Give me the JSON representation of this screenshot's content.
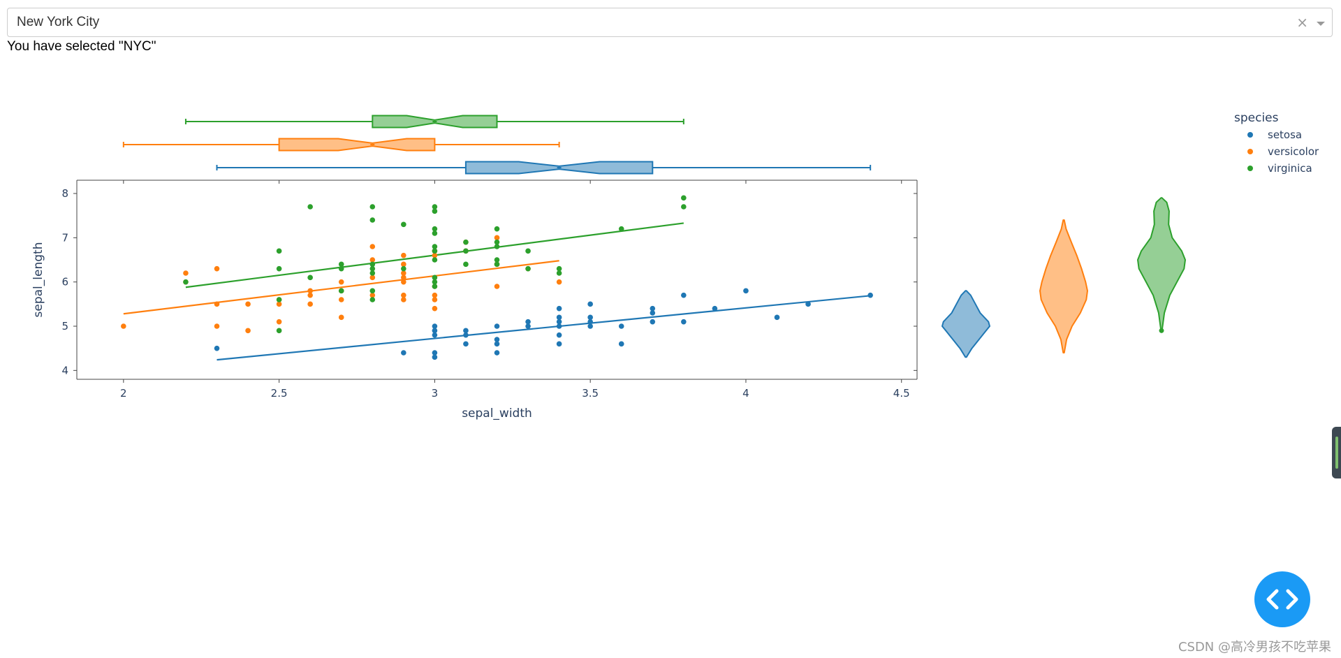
{
  "dropdown": {
    "value": "New York City",
    "clear_symbol": "×"
  },
  "selection_text": "You have selected \"NYC\"",
  "watermark": "CSDN @高冷男孩不吃苹果",
  "fab": {
    "icon": "code-brackets-icon"
  },
  "colors": {
    "setosa": "#1f77b4",
    "versicolor": "#ff7f0e",
    "virginica": "#2ca02c",
    "axis": "#444444",
    "accent": "#1a9af5"
  },
  "chart_data": [
    {
      "type": "scatter",
      "xlabel": "sepal_width",
      "ylabel": "sepal_length",
      "xlim": [
        1.85,
        4.55
      ],
      "ylim": [
        3.8,
        8.3
      ],
      "xticks": [
        "2",
        "2.5",
        "3",
        "3.5",
        "4",
        "4.5"
      ],
      "yticks": [
        "4",
        "5",
        "6",
        "7",
        "8"
      ],
      "legend": {
        "title": "species",
        "placement": "top-right"
      },
      "series": [
        {
          "name": "setosa",
          "color": "#1f77b4",
          "points": [
            [
              2.3,
              4.5
            ],
            [
              2.9,
              4.4
            ],
            [
              3.0,
              4.3
            ],
            [
              3.0,
              4.4
            ],
            [
              3.0,
              4.8
            ],
            [
              3.0,
              4.9
            ],
            [
              3.0,
              5.0
            ],
            [
              3.1,
              4.6
            ],
            [
              3.1,
              4.8
            ],
            [
              3.1,
              4.9
            ],
            [
              3.2,
              4.4
            ],
            [
              3.2,
              4.6
            ],
            [
              3.2,
              4.7
            ],
            [
              3.2,
              5.0
            ],
            [
              3.3,
              5.0
            ],
            [
              3.3,
              5.1
            ],
            [
              3.4,
              4.6
            ],
            [
              3.4,
              4.8
            ],
            [
              3.4,
              5.0
            ],
            [
              3.4,
              5.1
            ],
            [
              3.4,
              5.2
            ],
            [
              3.4,
              5.4
            ],
            [
              3.5,
              5.0
            ],
            [
              3.5,
              5.1
            ],
            [
              3.5,
              5.2
            ],
            [
              3.5,
              5.5
            ],
            [
              3.6,
              4.6
            ],
            [
              3.6,
              5.0
            ],
            [
              3.7,
              5.1
            ],
            [
              3.7,
              5.3
            ],
            [
              3.7,
              5.4
            ],
            [
              3.8,
              5.1
            ],
            [
              3.8,
              5.7
            ],
            [
              3.9,
              5.4
            ],
            [
              4.0,
              5.8
            ],
            [
              4.1,
              5.2
            ],
            [
              4.2,
              5.5
            ],
            [
              4.4,
              5.7
            ]
          ],
          "trendline": [
            [
              2.3,
              4.24
            ],
            [
              4.4,
              5.69
            ]
          ],
          "box": {
            "min": 2.3,
            "q1": 3.1,
            "median": 3.4,
            "q3": 3.7,
            "max": 4.4,
            "notch": [
              3.27,
              3.53
            ]
          },
          "violin": [
            [
              4.3,
              0.02
            ],
            [
              4.5,
              0.25
            ],
            [
              4.7,
              0.55
            ],
            [
              4.9,
              0.85
            ],
            [
              5.0,
              1.0
            ],
            [
              5.1,
              0.95
            ],
            [
              5.3,
              0.6
            ],
            [
              5.5,
              0.4
            ],
            [
              5.7,
              0.2
            ],
            [
              5.8,
              0.02
            ]
          ]
        },
        {
          "name": "versicolor",
          "color": "#ff7f0e",
          "points": [
            [
              2.0,
              5.0
            ],
            [
              2.2,
              6.0
            ],
            [
              2.2,
              6.2
            ],
            [
              2.3,
              5.0
            ],
            [
              2.3,
              5.5
            ],
            [
              2.3,
              6.3
            ],
            [
              2.4,
              4.9
            ],
            [
              2.4,
              5.5
            ],
            [
              2.5,
              5.1
            ],
            [
              2.5,
              5.5
            ],
            [
              2.5,
              5.6
            ],
            [
              2.6,
              5.5
            ],
            [
              2.6,
              5.7
            ],
            [
              2.6,
              5.8
            ],
            [
              2.7,
              5.2
            ],
            [
              2.7,
              5.6
            ],
            [
              2.7,
              5.8
            ],
            [
              2.7,
              6.0
            ],
            [
              2.8,
              5.7
            ],
            [
              2.8,
              6.1
            ],
            [
              2.8,
              6.5
            ],
            [
              2.8,
              6.8
            ],
            [
              2.9,
              5.6
            ],
            [
              2.9,
              5.7
            ],
            [
              2.9,
              6.0
            ],
            [
              2.9,
              6.1
            ],
            [
              2.9,
              6.2
            ],
            [
              2.9,
              6.4
            ],
            [
              2.9,
              6.6
            ],
            [
              3.0,
              5.4
            ],
            [
              3.0,
              5.6
            ],
            [
              3.0,
              5.7
            ],
            [
              3.0,
              5.9
            ],
            [
              3.0,
              6.6
            ],
            [
              3.0,
              6.7
            ],
            [
              3.1,
              6.7
            ],
            [
              3.1,
              6.9
            ],
            [
              3.2,
              5.9
            ],
            [
              3.2,
              6.4
            ],
            [
              3.2,
              7.0
            ],
            [
              3.3,
              6.3
            ],
            [
              3.4,
              6.0
            ]
          ],
          "trendline": [
            [
              2.0,
              5.28
            ],
            [
              3.4,
              6.48
            ]
          ],
          "box": {
            "min": 2.0,
            "q1": 2.5,
            "median": 2.8,
            "q3": 3.0,
            "max": 3.4,
            "notch": [
              2.69,
              2.91
            ]
          },
          "violin": [
            [
              4.4,
              0.02
            ],
            [
              4.7,
              0.12
            ],
            [
              5.0,
              0.35
            ],
            [
              5.3,
              0.7
            ],
            [
              5.6,
              0.95
            ],
            [
              5.8,
              1.0
            ],
            [
              6.0,
              0.92
            ],
            [
              6.3,
              0.75
            ],
            [
              6.6,
              0.55
            ],
            [
              6.9,
              0.32
            ],
            [
              7.2,
              0.1
            ],
            [
              7.4,
              0.02
            ]
          ]
        },
        {
          "name": "virginica",
          "color": "#2ca02c",
          "points": [
            [
              2.2,
              6.0
            ],
            [
              2.5,
              4.9
            ],
            [
              2.5,
              5.6
            ],
            [
              2.5,
              6.3
            ],
            [
              2.5,
              6.7
            ],
            [
              2.6,
              6.1
            ],
            [
              2.6,
              7.7
            ],
            [
              2.7,
              5.8
            ],
            [
              2.7,
              6.3
            ],
            [
              2.7,
              6.4
            ],
            [
              2.8,
              5.6
            ],
            [
              2.8,
              5.8
            ],
            [
              2.8,
              6.2
            ],
            [
              2.8,
              6.3
            ],
            [
              2.8,
              6.4
            ],
            [
              2.8,
              7.4
            ],
            [
              2.8,
              7.7
            ],
            [
              2.9,
              6.3
            ],
            [
              2.9,
              7.3
            ],
            [
              3.0,
              5.9
            ],
            [
              3.0,
              6.0
            ],
            [
              3.0,
              6.1
            ],
            [
              3.0,
              6.5
            ],
            [
              3.0,
              6.7
            ],
            [
              3.0,
              6.8
            ],
            [
              3.0,
              7.1
            ],
            [
              3.0,
              7.2
            ],
            [
              3.0,
              7.6
            ],
            [
              3.0,
              7.7
            ],
            [
              3.1,
              6.4
            ],
            [
              3.1,
              6.7
            ],
            [
              3.1,
              6.9
            ],
            [
              3.2,
              6.4
            ],
            [
              3.2,
              6.5
            ],
            [
              3.2,
              6.8
            ],
            [
              3.2,
              6.9
            ],
            [
              3.2,
              7.2
            ],
            [
              3.3,
              6.3
            ],
            [
              3.3,
              6.7
            ],
            [
              3.4,
              6.2
            ],
            [
              3.4,
              6.3
            ],
            [
              3.6,
              7.2
            ],
            [
              3.8,
              7.7
            ],
            [
              3.8,
              7.9
            ]
          ],
          "trendline": [
            [
              2.2,
              5.88
            ],
            [
              3.8,
              7.33
            ]
          ],
          "box": {
            "min": 2.2,
            "q1": 2.8,
            "median": 3.0,
            "q3": 3.2,
            "max": 3.8,
            "notch": [
              2.91,
              3.09
            ]
          },
          "violin": [
            [
              4.9,
              0.02
            ],
            [
              5.3,
              0.12
            ],
            [
              5.7,
              0.35
            ],
            [
              6.0,
              0.65
            ],
            [
              6.3,
              0.95
            ],
            [
              6.5,
              1.0
            ],
            [
              6.7,
              0.85
            ],
            [
              7.0,
              0.45
            ],
            [
              7.3,
              0.3
            ],
            [
              7.6,
              0.32
            ],
            [
              7.8,
              0.22
            ],
            [
              7.9,
              0.02
            ]
          ],
          "violin_outlier": 4.9
        }
      ]
    }
  ]
}
